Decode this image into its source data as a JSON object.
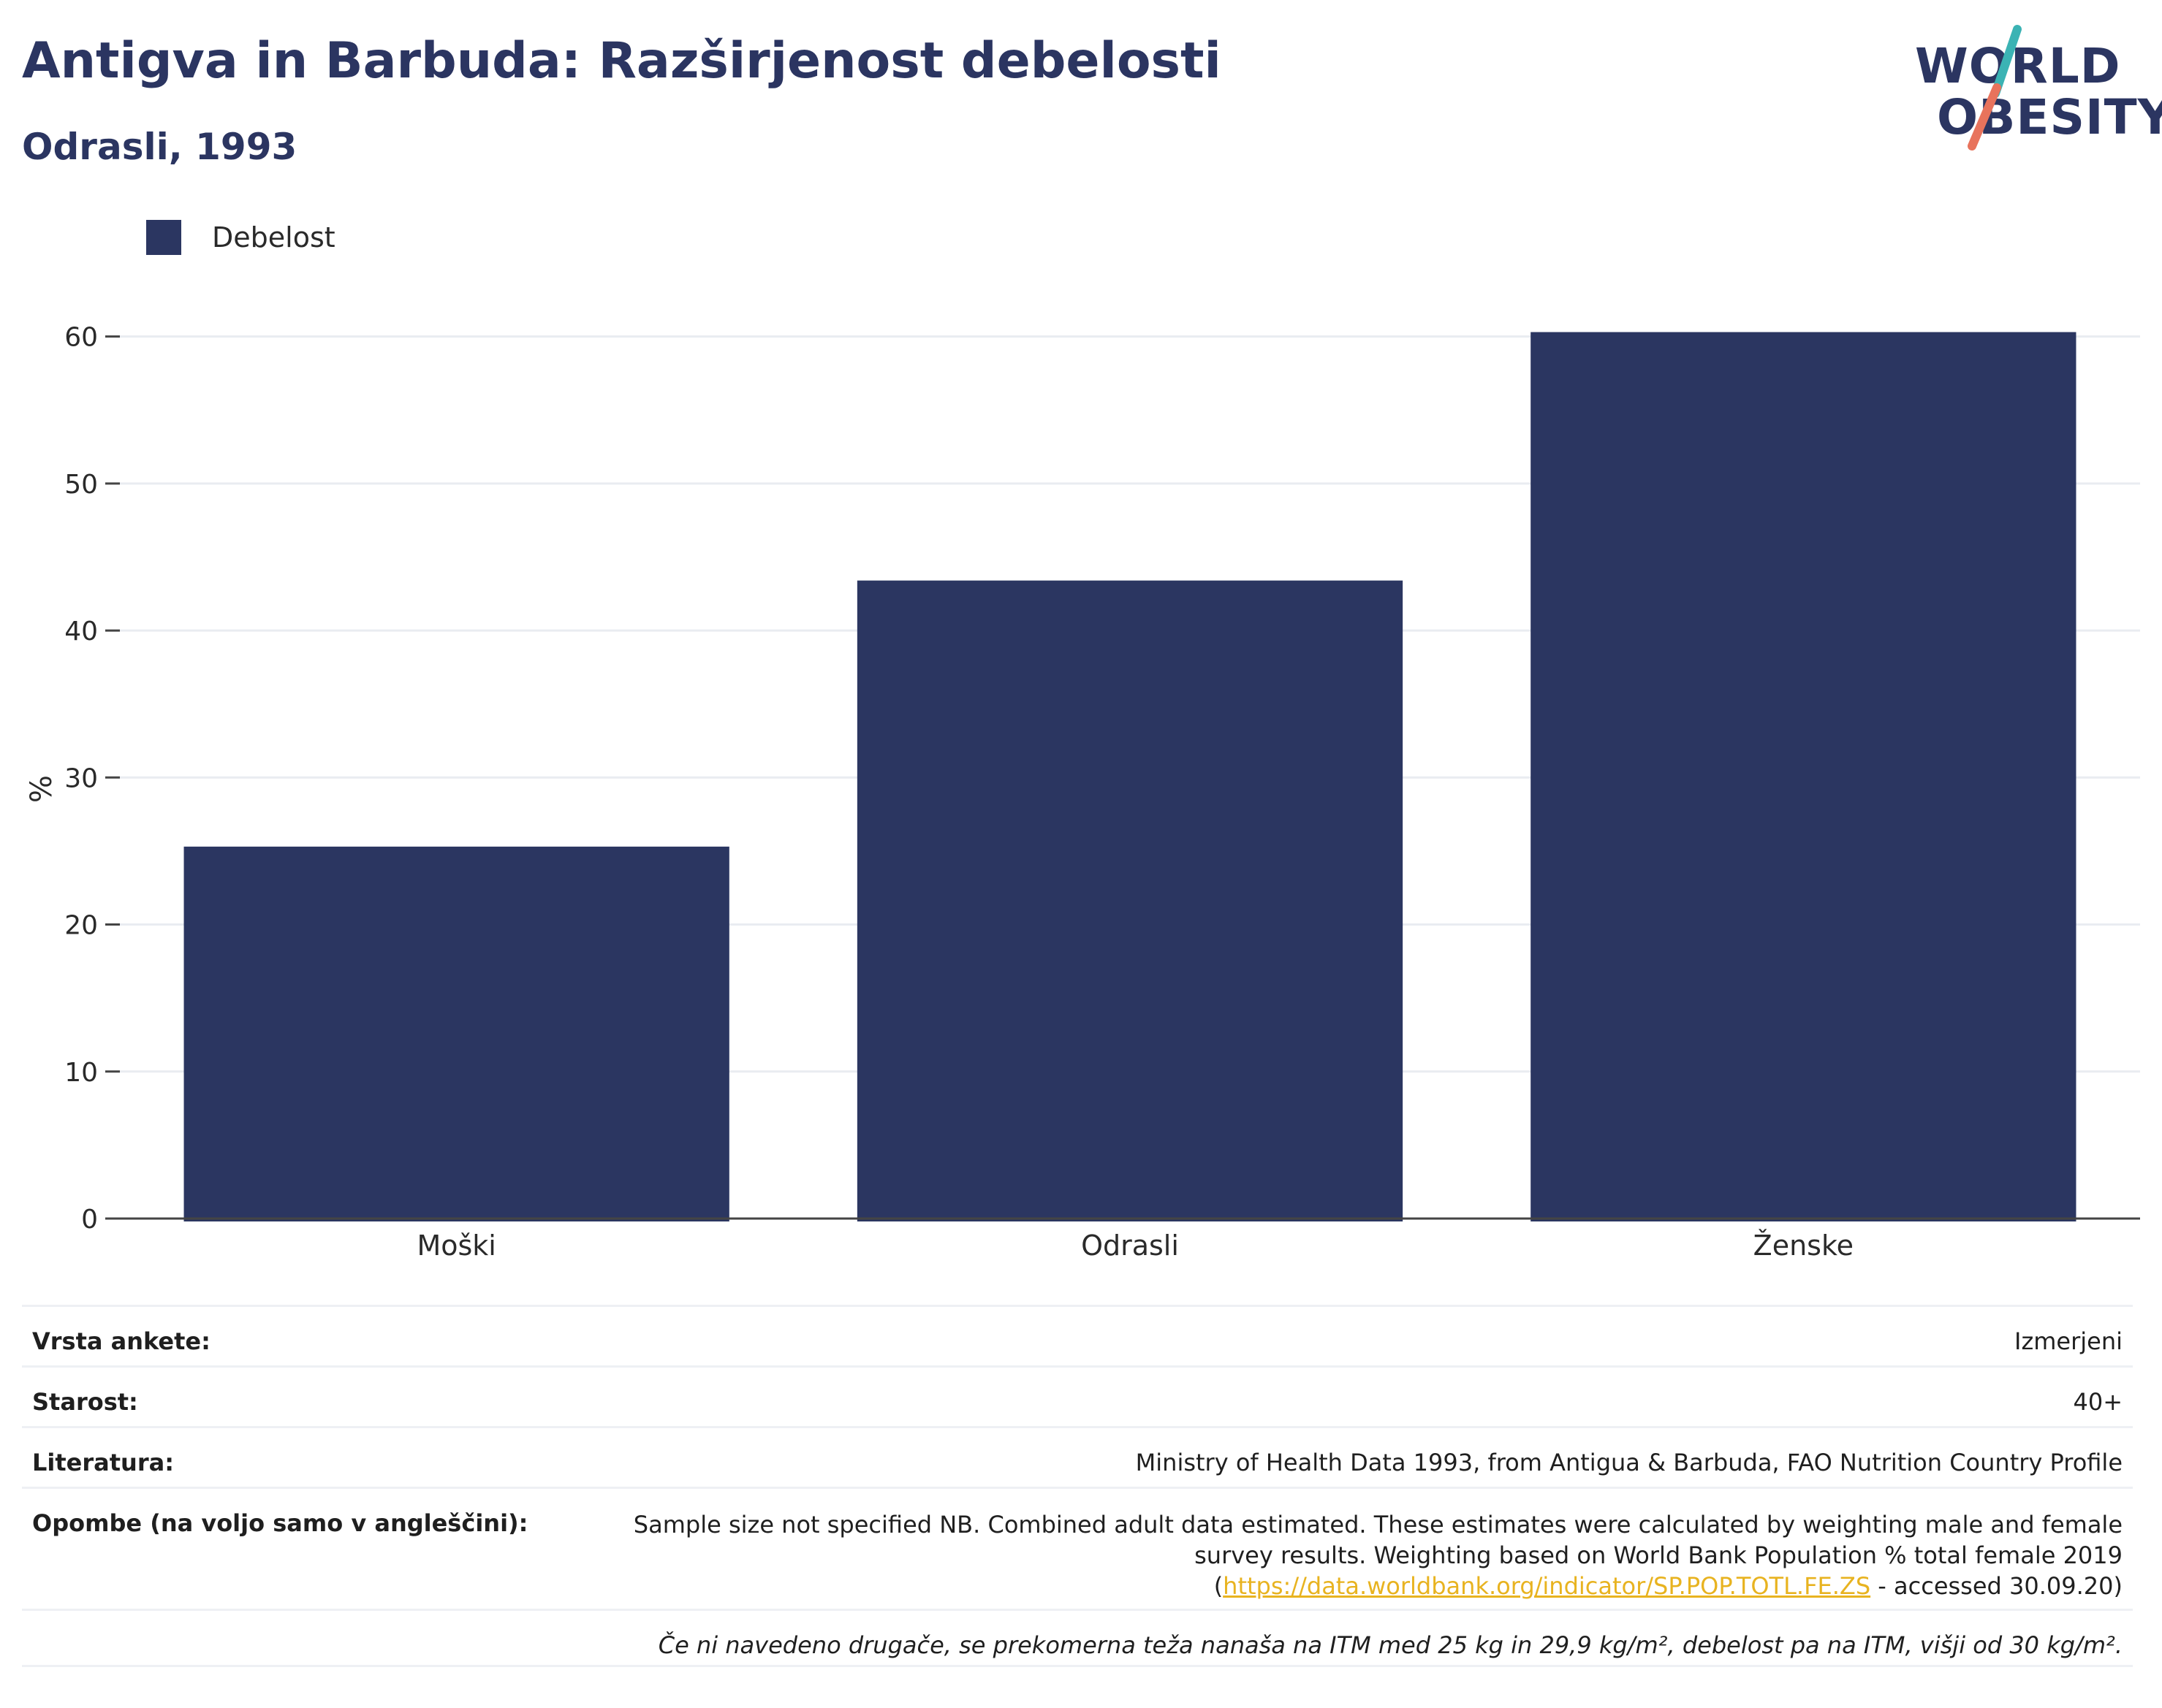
{
  "header": {
    "title": "Antigva in Barbuda: Razširjenost debelosti",
    "subtitle": "Odrasli, 1993"
  },
  "logo": {
    "line1": "WORLD",
    "line2": "OBESITY",
    "accent_teal": "#3bb3b4",
    "accent_coral": "#e8735c"
  },
  "legend": {
    "label": "Debelost"
  },
  "chart_data": {
    "type": "bar",
    "categories": [
      "Moški",
      "Odrasli",
      "Ženske"
    ],
    "series": [
      {
        "name": "Debelost",
        "values": [
          25.3,
          43.4,
          60.3
        ],
        "color": "#2b3661"
      }
    ],
    "ylabel": "%",
    "ylim": [
      0,
      65
    ],
    "yticks": [
      0,
      10,
      20,
      30,
      40,
      50,
      60
    ],
    "grid": true
  },
  "info": {
    "survey_type": {
      "label": "Vrsta ankete:",
      "value": "Izmerjeni"
    },
    "age": {
      "label": "Starost:",
      "value": "40+"
    },
    "reference": {
      "label": "Literatura:",
      "value": "Ministry of Health Data 1993, from Antigua & Barbuda, FAO Nutrition Country Profile"
    },
    "notes": {
      "label": "Opombe (na voljo samo v angleščini):",
      "text_before": "Sample size not specified NB. Combined adult data estimated. These estimates were calculated by weighting male and female survey results. Weighting based on World Bank Population % total female 2019 (",
      "link": "https://data.worldbank.org/indicator/SP.POP.TOTL.FE.ZS",
      "text_after": " - accessed 30.09.20)"
    },
    "footnote": "Če ni navedeno drugače, se prekomerna teža nanaša na ITM med 25 kg in 29,9 kg/m², debelost pa na ITM, višji od 30 kg/m²."
  }
}
